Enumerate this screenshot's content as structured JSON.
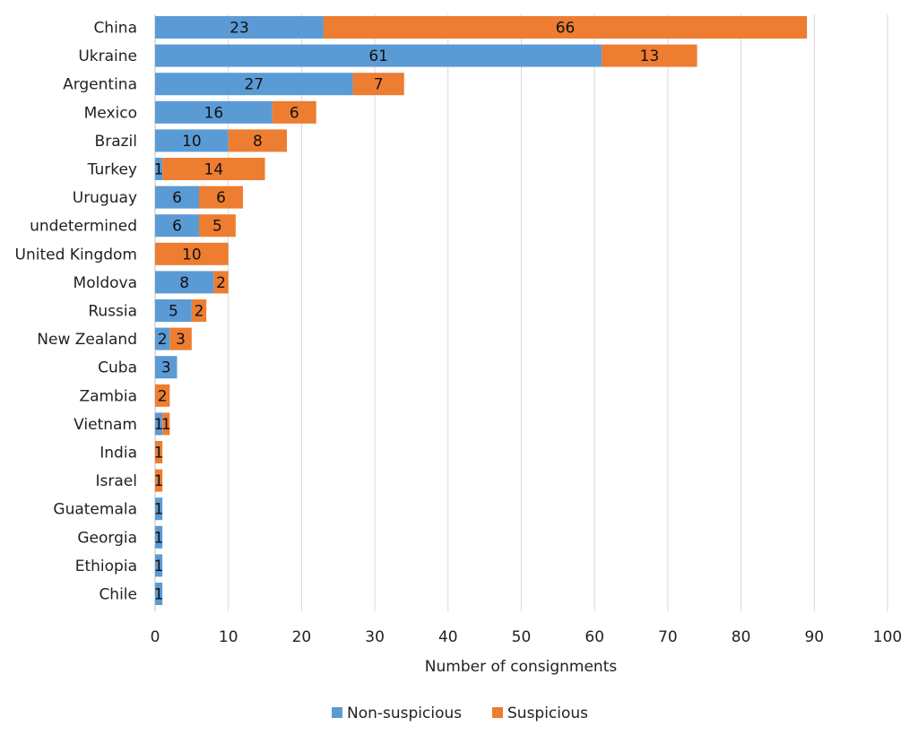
{
  "chart_data": {
    "type": "bar",
    "orientation": "horizontal",
    "stacked": true,
    "categories": [
      "China",
      "Ukraine",
      "Argentina",
      "Mexico",
      "Brazil",
      "Turkey",
      "Uruguay",
      "undetermined",
      "United Kingdom",
      "Moldova",
      "Russia",
      "New Zealand",
      "Cuba",
      "Zambia",
      "Vietnam",
      "India",
      "Israel",
      "Guatemala",
      "Georgia",
      "Ethiopia",
      "Chile"
    ],
    "series": [
      {
        "name": "Non-suspicious",
        "color": "#5B9BD5",
        "values": [
          23,
          61,
          27,
          16,
          10,
          1,
          6,
          6,
          0,
          8,
          5,
          2,
          3,
          0,
          1,
          0,
          0,
          1,
          1,
          1,
          1
        ]
      },
      {
        "name": "Suspicious",
        "color": "#ED7D31",
        "values": [
          66,
          13,
          7,
          6,
          8,
          14,
          6,
          5,
          10,
          2,
          2,
          3,
          0,
          2,
          1,
          1,
          1,
          0,
          0,
          0,
          0
        ]
      }
    ],
    "xlabel": "Number of consignments",
    "ylabel": "",
    "title": "",
    "xlim": [
      0,
      100
    ],
    "xticks": [
      0,
      10,
      20,
      30,
      40,
      50,
      60,
      70,
      80,
      90,
      100
    ],
    "grid": "vertical",
    "legend": "bottom"
  }
}
